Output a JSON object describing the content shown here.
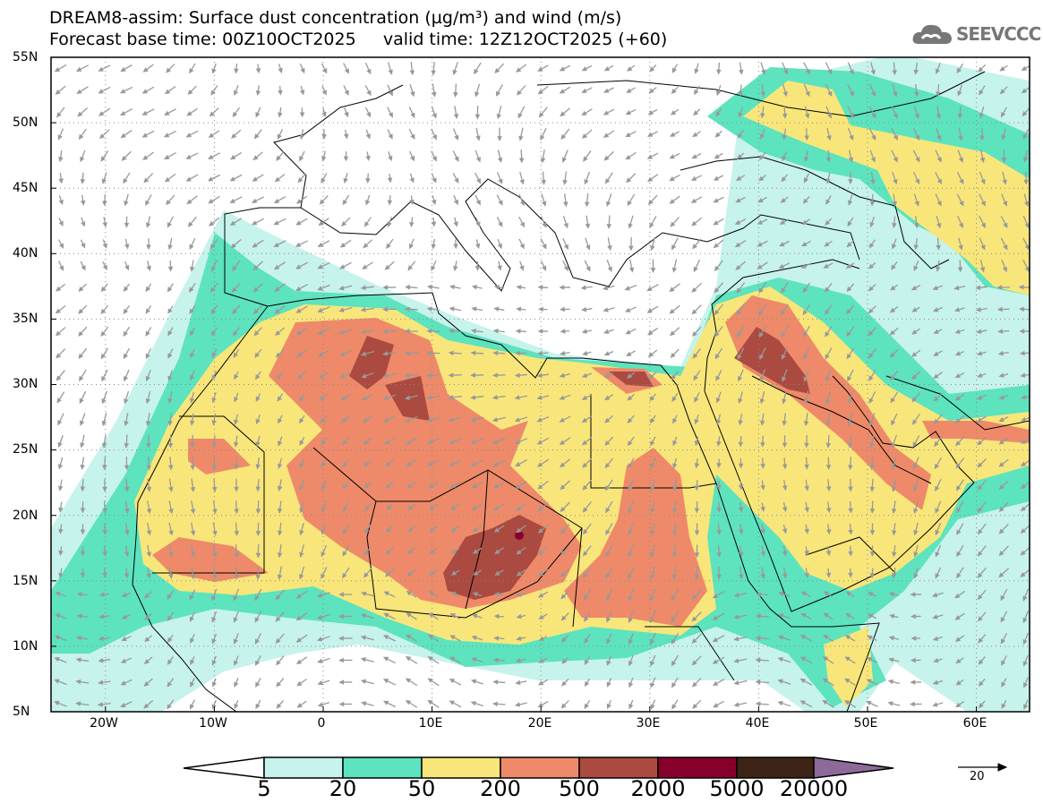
{
  "title_line1": "DREAM8-assim: Surface dust concentration (µg/m³) and wind (m/s)",
  "title_line2": "Forecast base time: 00Z10OCT2025     valid time: 12Z12OCT2025 (+60)",
  "logo_text": "SEEVCCC",
  "lat_labels": [
    "55N",
    "50N",
    "45N",
    "40N",
    "35N",
    "30N",
    "25N",
    "20N",
    "15N",
    "10N",
    "5N"
  ],
  "lon_labels": [
    "20W",
    "10W",
    "0",
    "10E",
    "20E",
    "30E",
    "40E",
    "50E",
    "60E"
  ],
  "colorbar": {
    "labels": [
      "5",
      "20",
      "50",
      "200",
      "500",
      "2000",
      "5000",
      "20000"
    ],
    "colors": [
      "#ffffff",
      "#c6f3ec",
      "#5de3be",
      "#f8e67b",
      "#ee8a69",
      "#ab4a40",
      "#87002c",
      "#3d2414",
      "#8e6a9a"
    ]
  },
  "wind_reference": {
    "value": "20",
    "unit": "m/s"
  }
}
